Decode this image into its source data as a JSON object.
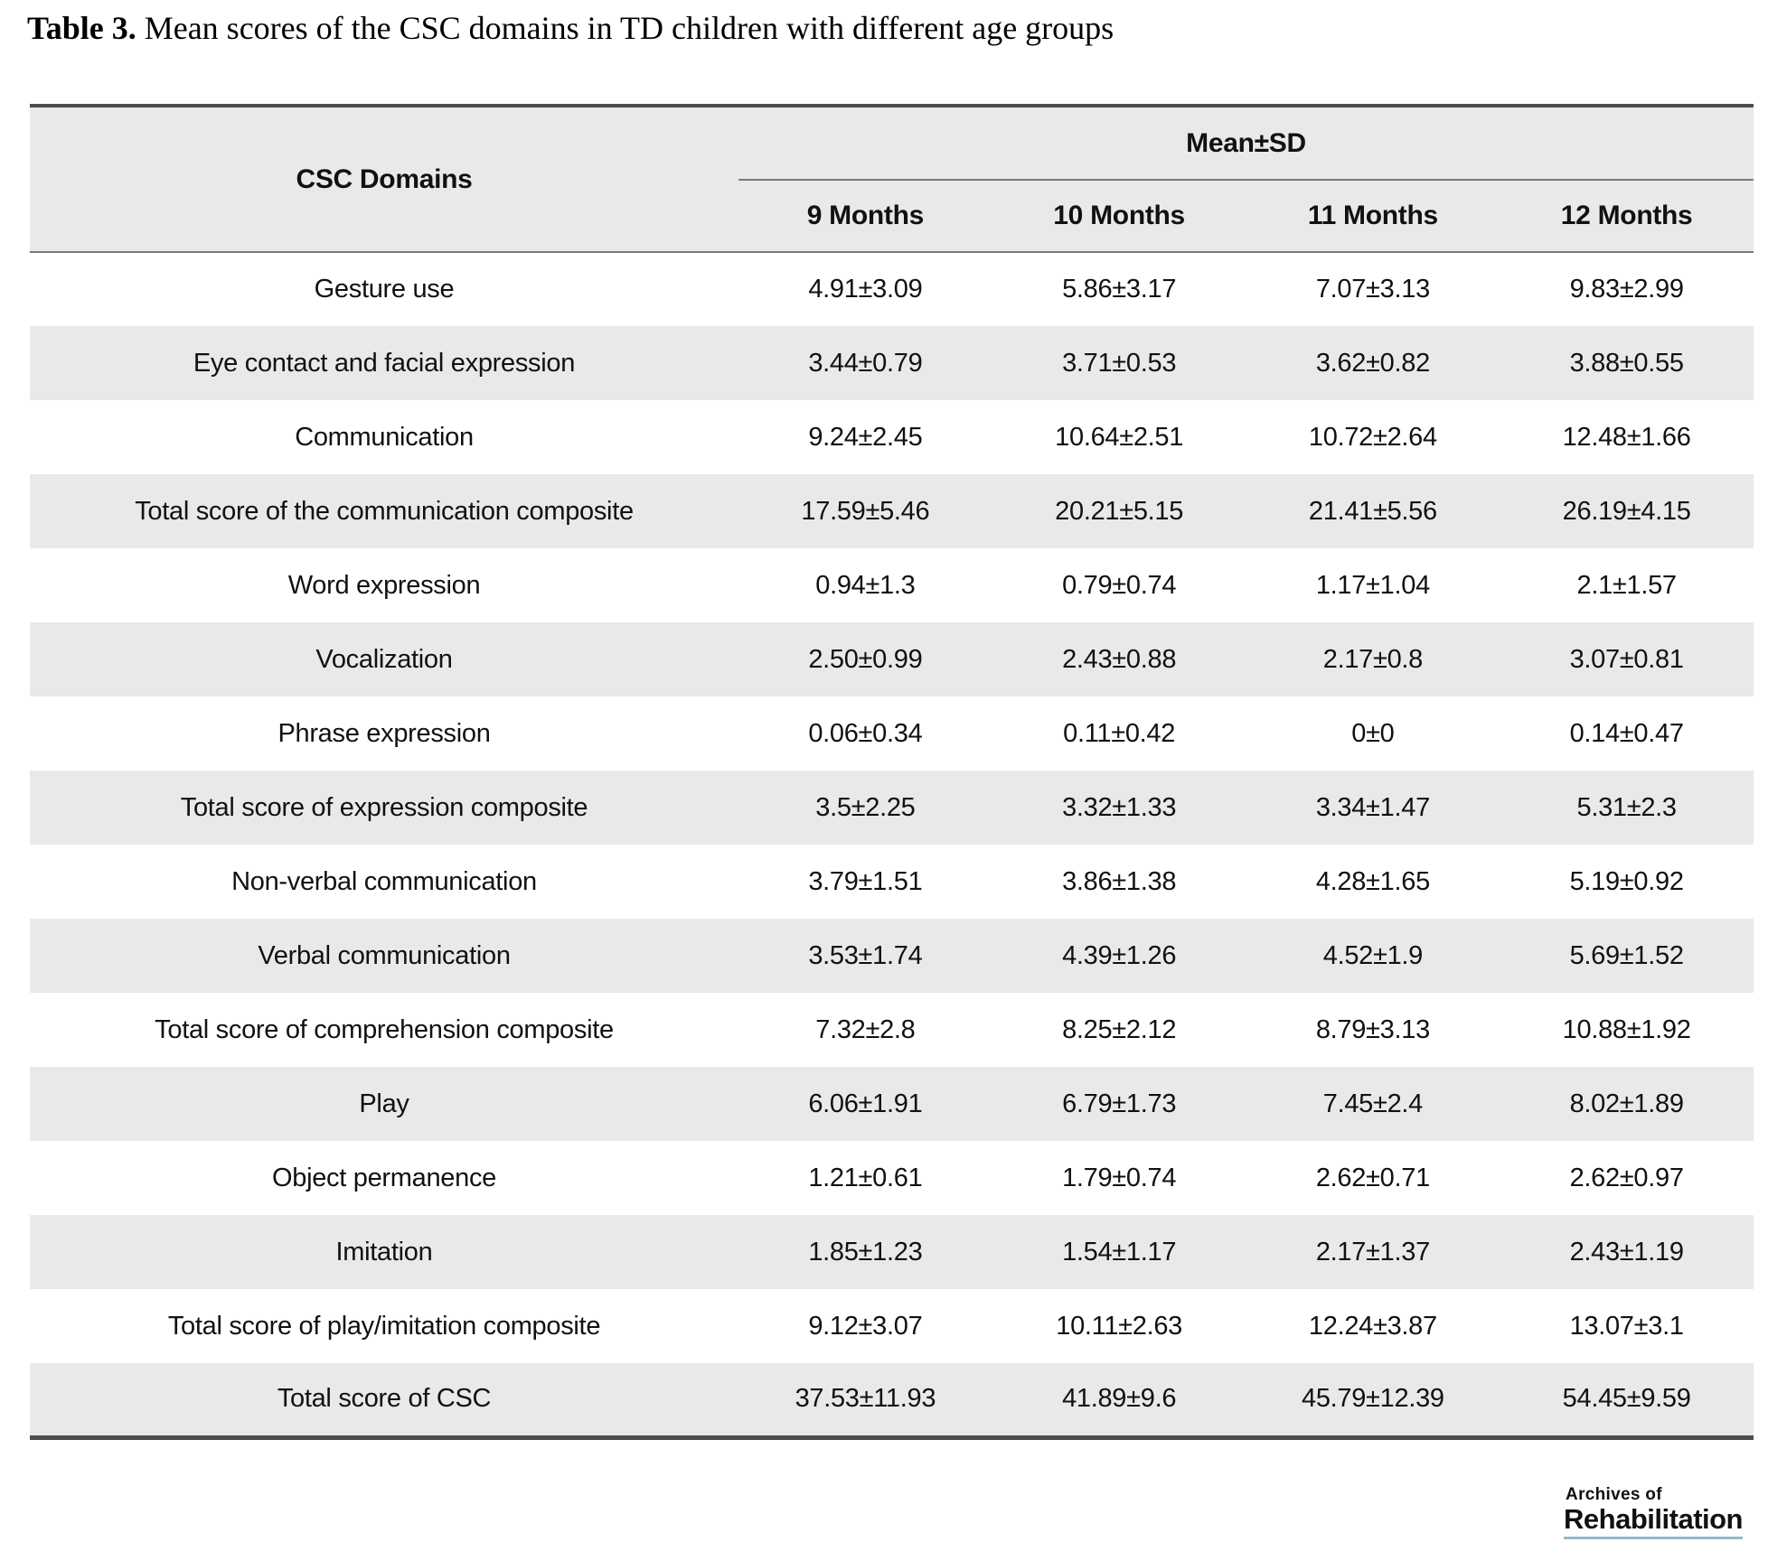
{
  "title": {
    "label": "Table 3.",
    "text": "Mean scores of the CSC domains in TD children with different age groups"
  },
  "table": {
    "domain_header": "CSC Domains",
    "group_header": "Mean±SD",
    "columns": [
      "9 Months",
      "10 Months",
      "11 Months",
      "12 Months"
    ],
    "rows": [
      {
        "domain": "Gesture use",
        "values": [
          "4.91±3.09",
          "5.86±3.17",
          "7.07±3.13",
          "9.83±2.99"
        ]
      },
      {
        "domain": "Eye contact and facial expression",
        "values": [
          "3.44±0.79",
          "3.71±0.53",
          "3.62±0.82",
          "3.88±0.55"
        ]
      },
      {
        "domain": "Communication",
        "values": [
          "9.24±2.45",
          "10.64±2.51",
          "10.72±2.64",
          "12.48±1.66"
        ]
      },
      {
        "domain": "Total score of the communication composite",
        "values": [
          "17.59±5.46",
          "20.21±5.15",
          "21.41±5.56",
          "26.19±4.15"
        ]
      },
      {
        "domain": "Word expression",
        "values": [
          "0.94±1.3",
          "0.79±0.74",
          "1.17±1.04",
          "2.1±1.57"
        ]
      },
      {
        "domain": "Vocalization",
        "values": [
          "2.50±0.99",
          "2.43±0.88",
          "2.17±0.8",
          "3.07±0.81"
        ]
      },
      {
        "domain": "Phrase expression",
        "values": [
          "0.06±0.34",
          "0.11±0.42",
          "0±0",
          "0.14±0.47"
        ]
      },
      {
        "domain": "Total score of expression composite",
        "values": [
          "3.5±2.25",
          "3.32±1.33",
          "3.34±1.47",
          "5.31±2.3"
        ]
      },
      {
        "domain": "Non-verbal communication",
        "values": [
          "3.79±1.51",
          "3.86±1.38",
          "4.28±1.65",
          "5.19±0.92"
        ]
      },
      {
        "domain": "Verbal communication",
        "values": [
          "3.53±1.74",
          "4.39±1.26",
          "4.52±1.9",
          "5.69±1.52"
        ]
      },
      {
        "domain": "Total score of comprehension composite",
        "values": [
          "7.32±2.8",
          "8.25±2.12",
          "8.79±3.13",
          "10.88±1.92"
        ]
      },
      {
        "domain": "Play",
        "values": [
          "6.06±1.91",
          "6.79±1.73",
          "7.45±2.4",
          "8.02±1.89"
        ]
      },
      {
        "domain": "Object permanence",
        "values": [
          "1.21±0.61",
          "1.79±0.74",
          "2.62±0.71",
          "2.62±0.97"
        ]
      },
      {
        "domain": "Imitation",
        "values": [
          "1.85±1.23",
          "1.54±1.17",
          "2.17±1.37",
          "2.43±1.19"
        ]
      },
      {
        "domain": "Total score of play/imitation composite",
        "values": [
          "9.12±3.07",
          "10.11±2.63",
          "12.24±3.87",
          "13.07±3.1"
        ]
      },
      {
        "domain": "Total score of CSC",
        "values": [
          "37.53±11.93",
          "41.89±9.6",
          "45.79±12.39",
          "54.45±9.59"
        ]
      }
    ]
  },
  "logo": {
    "line1": "Archives of",
    "line2": "Rehabilitation"
  },
  "colors": {
    "row_alt_background": "#e9e9e9",
    "border_dark": "#4d4d4d",
    "border_thin": "#7a7a7a",
    "logo_underline": "#96b9cb",
    "text": "#111111"
  }
}
